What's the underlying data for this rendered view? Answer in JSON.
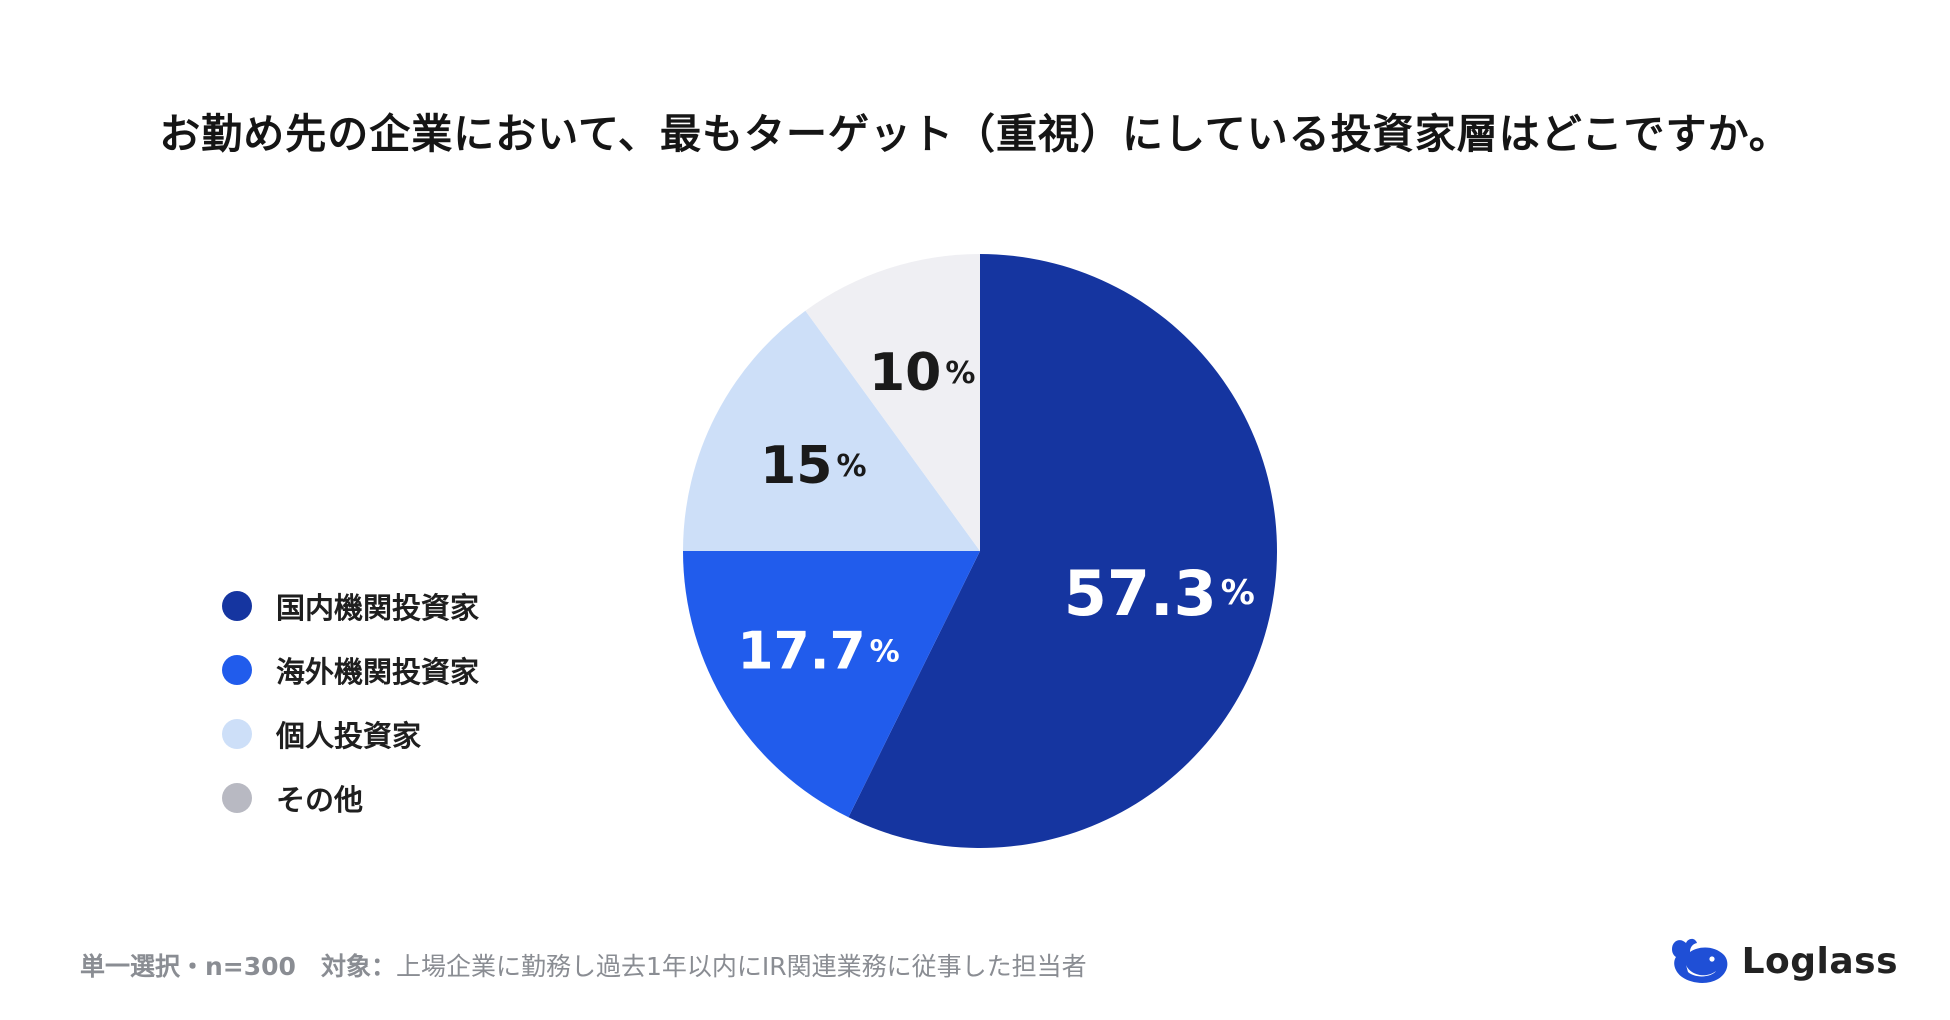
{
  "title": "お勤め先の企業において、最もターゲット（重視）にしている投資家層はどこですか。",
  "chart_data": {
    "type": "pie",
    "categories": [
      "国内機関投資家",
      "海外機関投資家",
      "個人投資家",
      "その他"
    ],
    "values": [
      57.3,
      17.7,
      15,
      10
    ],
    "value_labels": [
      "57.3",
      "17.7",
      "15",
      "10"
    ],
    "unit": "%",
    "colors": [
      "#1535a0",
      "#215cec",
      "#cddff8",
      "#efeff3"
    ],
    "label_colors": [
      "#ffffff",
      "#ffffff",
      "#1a1a1a",
      "#1a1a1a"
    ],
    "legend_colors": [
      "#1535a0",
      "#215cec",
      "#cddff8",
      "#b8b9c2"
    ],
    "legend_position": "left",
    "start": "12 o'clock",
    "direction": "clockwise"
  },
  "footer": {
    "method": "単一選択・n=300",
    "target_label": "対象：",
    "target_text": "上場企業に勤務し過去1年以内にIR関連業務に従事した担当者"
  },
  "brand": {
    "name": "Loglass",
    "icon": "whale-logo-icon"
  }
}
